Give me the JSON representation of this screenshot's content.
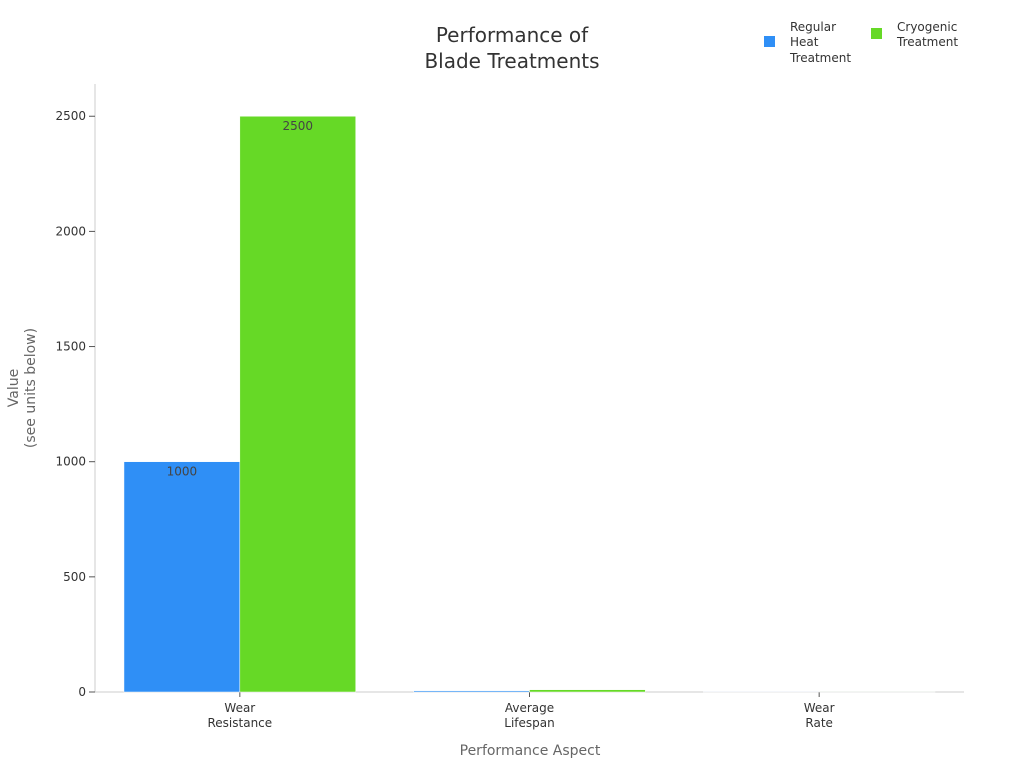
{
  "chart_data": {
    "type": "bar",
    "title": [
      "Performance of",
      "Blade Treatments"
    ],
    "xlabel": "Performance Aspect",
    "ylabel": [
      "Value",
      "(see units below)"
    ],
    "categories": [
      [
        "Wear",
        "Resistance"
      ],
      [
        "Average",
        "Lifespan"
      ],
      [
        "Wear",
        "Rate"
      ]
    ],
    "series": [
      {
        "name": [
          "Regular",
          "Heat",
          "Treatment"
        ],
        "color": "#2f8ff6",
        "values": [
          1000,
          5,
          0.5
        ],
        "data_labels": [
          "1000",
          null,
          null
        ]
      },
      {
        "name": [
          "Cryogenic",
          "Treatment"
        ],
        "color": "#66d926",
        "values": [
          2500,
          10,
          0.2
        ],
        "data_labels": [
          "2500",
          null,
          null
        ]
      }
    ],
    "ylim": [
      0,
      2640
    ],
    "yticks": [
      0,
      500,
      1000,
      1500,
      2000,
      2500
    ],
    "grid": false,
    "legend_position": "top-right"
  }
}
